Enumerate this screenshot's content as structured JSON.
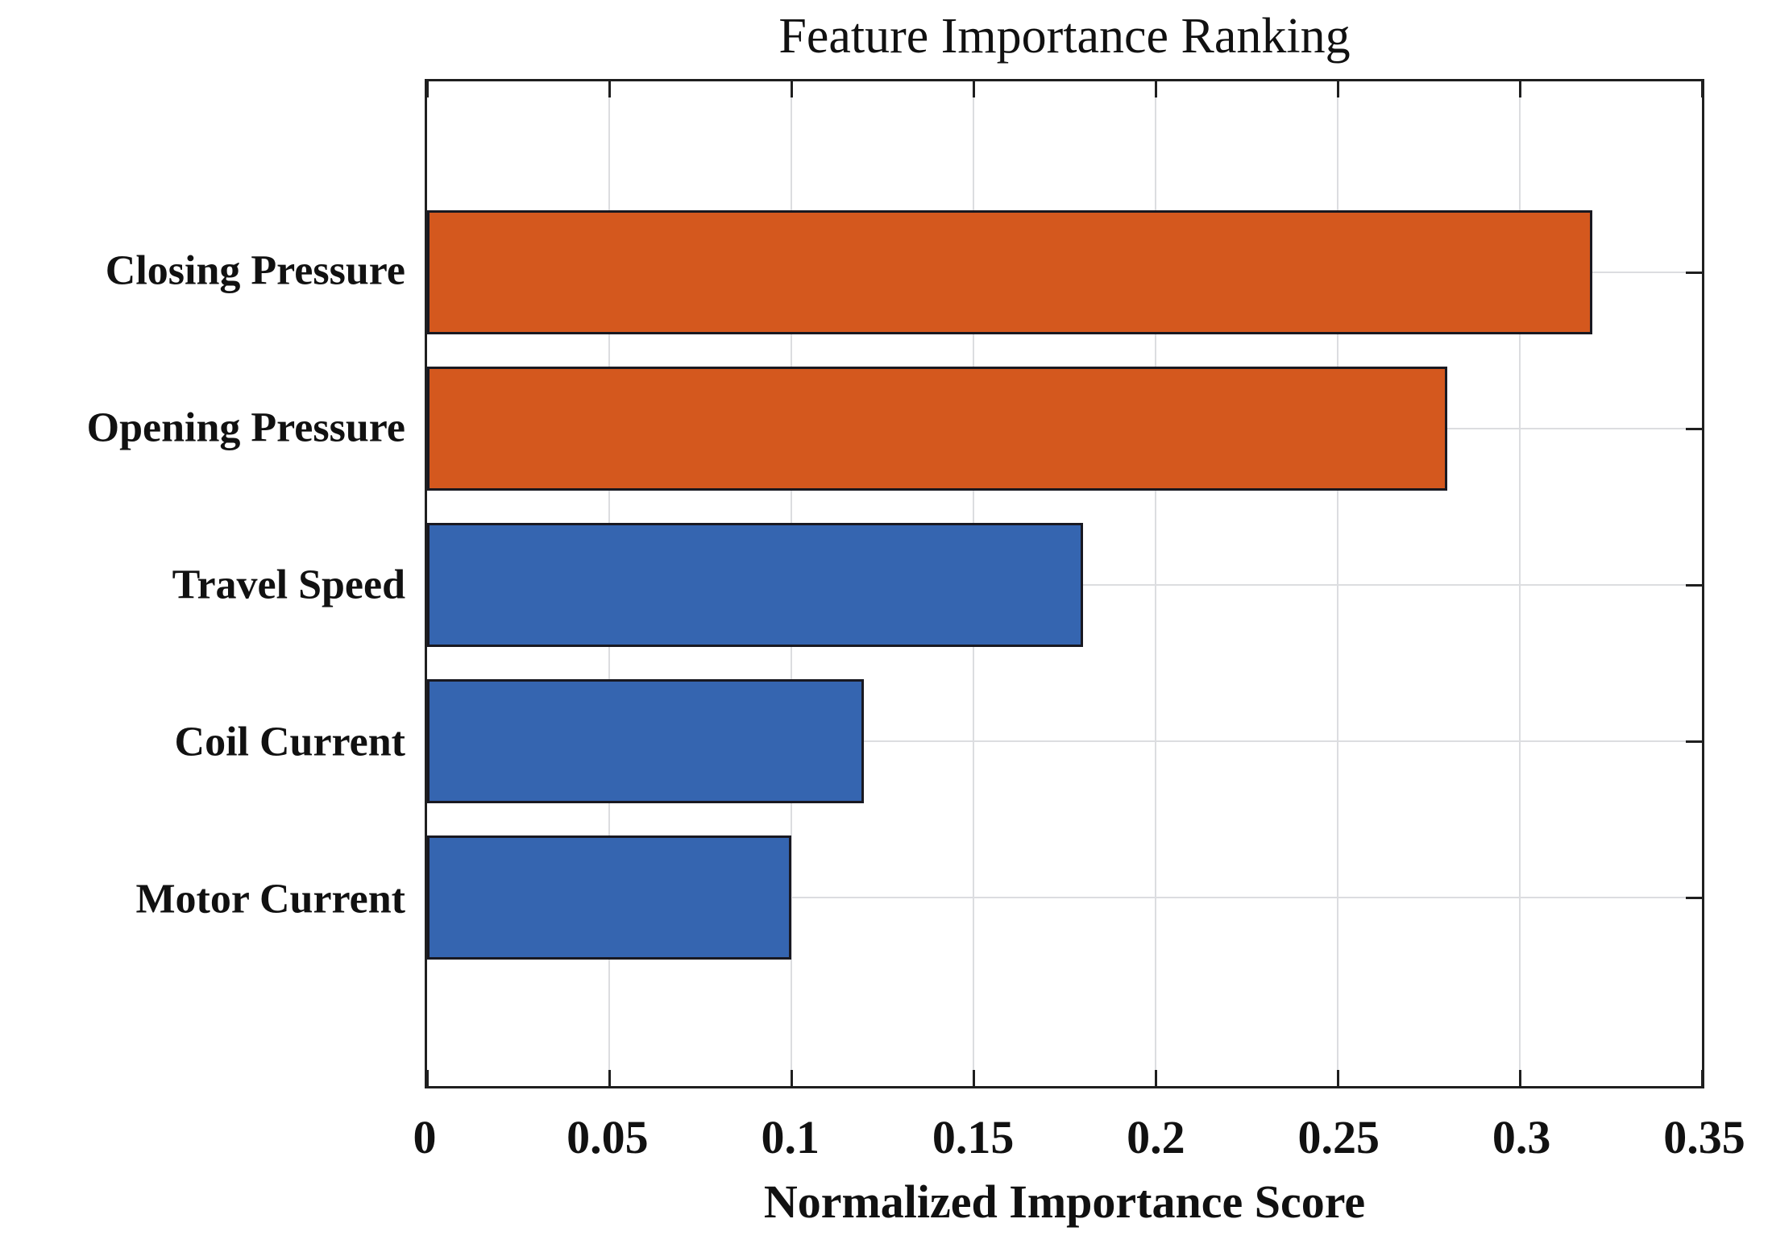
{
  "chart_data": {
    "type": "bar",
    "orientation": "horizontal",
    "title": "Feature Importance Ranking",
    "xlabel": "Normalized Importance Score",
    "ylabel": "",
    "categories": [
      "Closing Pressure",
      "Opening Pressure",
      "Travel Speed",
      "Coil Current",
      "Motor Current"
    ],
    "values": [
      0.32,
      0.28,
      0.18,
      0.12,
      0.1
    ],
    "bar_colors": [
      "#d4581e",
      "#d4581e",
      "#3565b0",
      "#3565b0",
      "#3565b0"
    ],
    "xlim": [
      0,
      0.35
    ],
    "xticks": [
      0,
      0.05,
      0.1,
      0.15,
      0.2,
      0.25,
      0.3,
      0.35
    ],
    "xtick_labels": [
      "0",
      "0.05",
      "0.1",
      "0.15",
      "0.2",
      "0.25",
      "0.3",
      "0.35"
    ],
    "grid": "both",
    "gridline_ticks": [
      0.05,
      0.1,
      0.15,
      0.2,
      0.25,
      0.3
    ],
    "legend": "none",
    "colors": {
      "orange": "#d4581e",
      "blue": "#3565b0",
      "bar_edge": "#191921",
      "axis": "#1f1f1f",
      "grid": "#dcdde0",
      "background": "#ffffff",
      "text": "#111111"
    }
  }
}
